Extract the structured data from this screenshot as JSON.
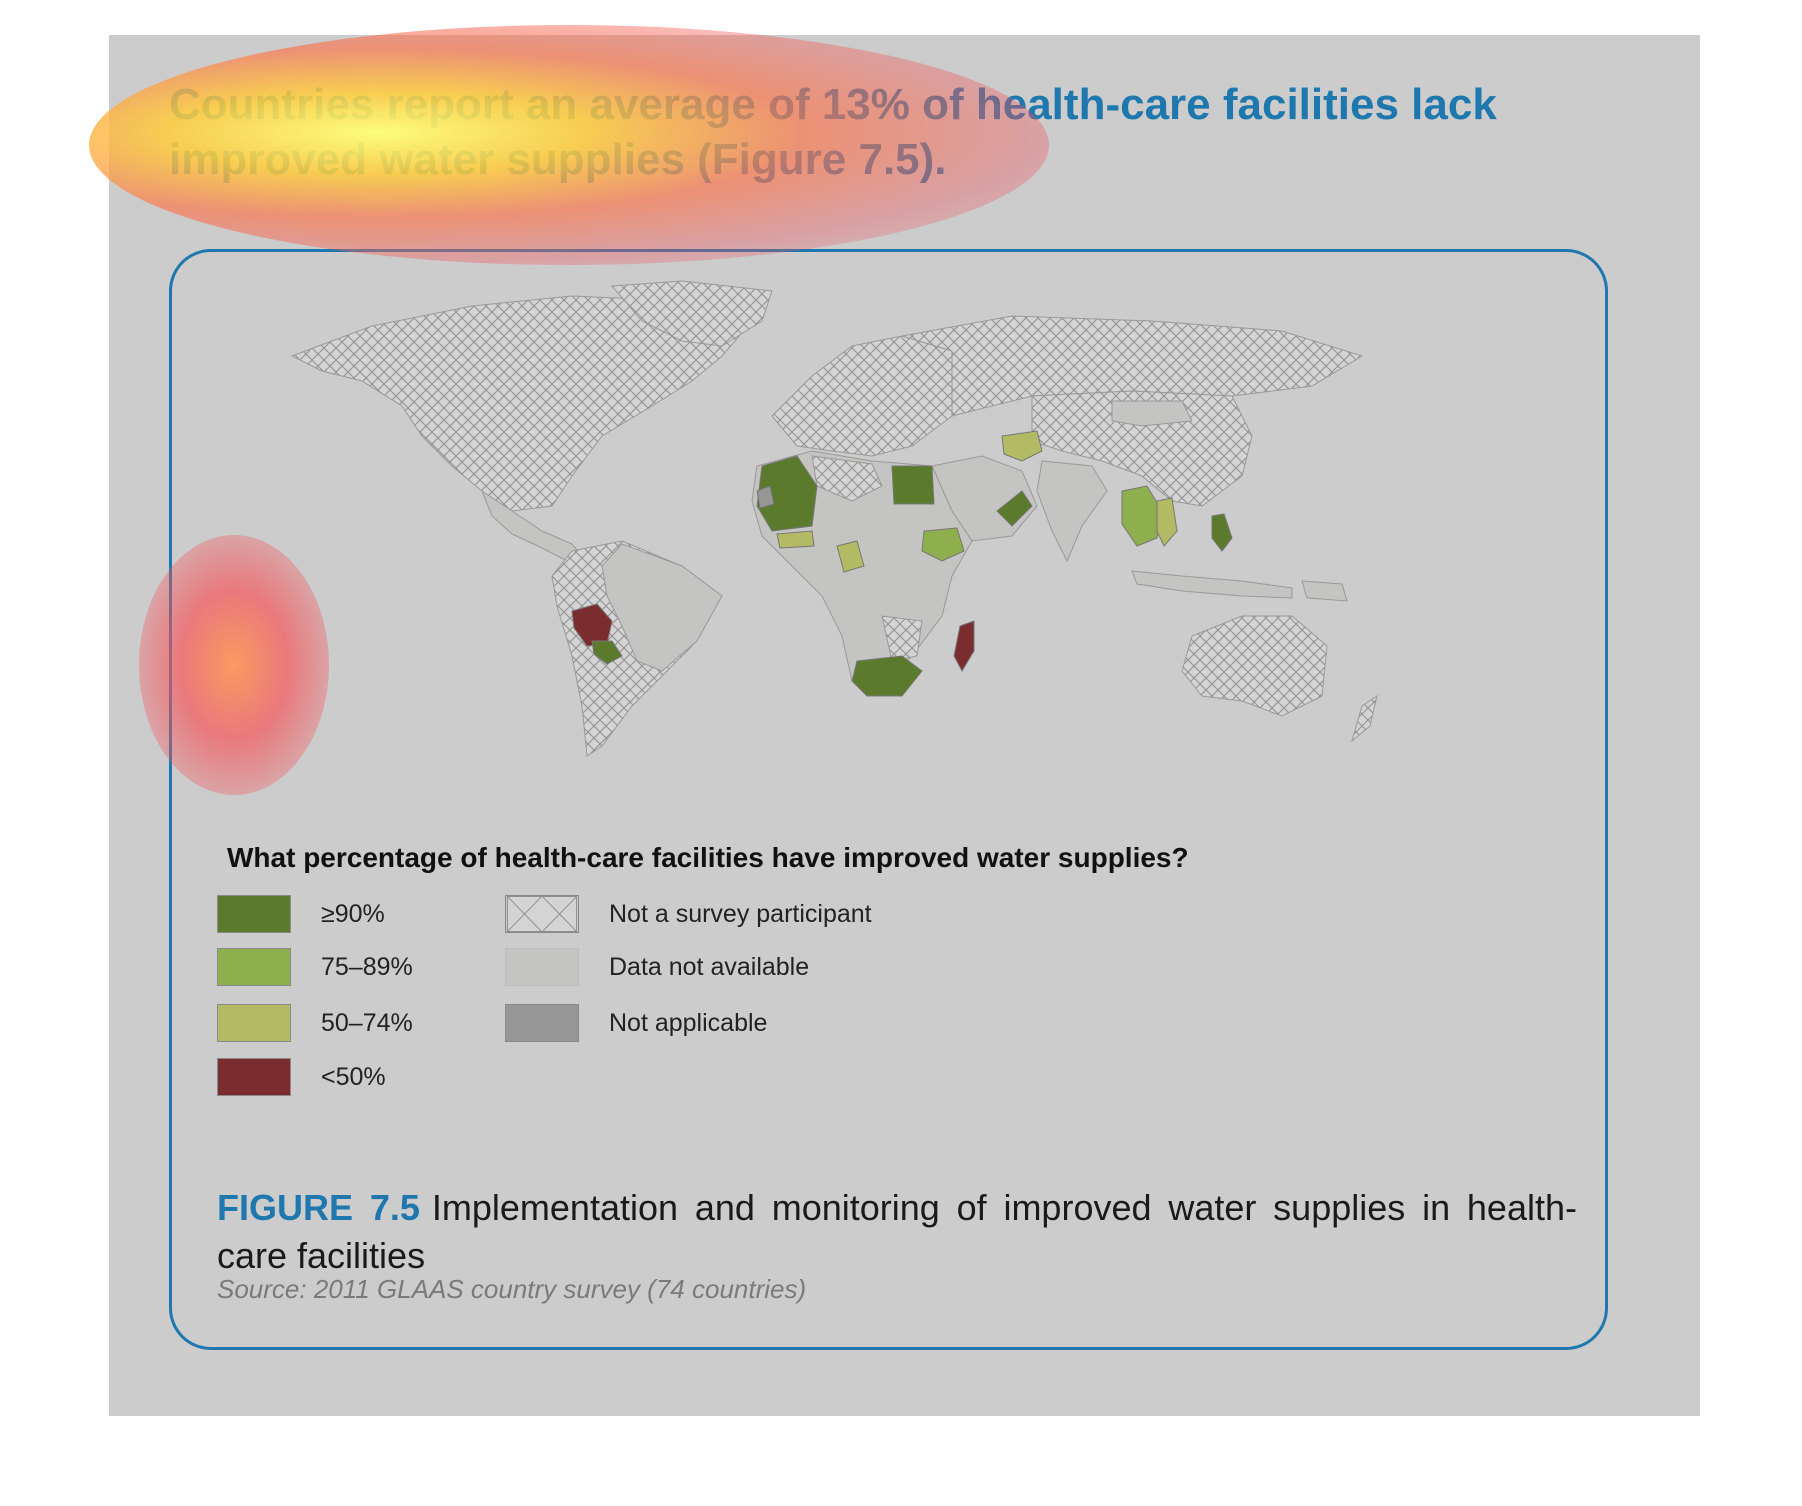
{
  "headline": "Countries report an average of 13% of health-care facilities lack improved water supplies (Figure 7.5).",
  "legend": {
    "title": "What percentage of health-care facilities have improved water supplies?",
    "items": [
      {
        "label": "≥90%",
        "color": "#5b7a2c"
      },
      {
        "label": "75–89%",
        "color": "#8fae4e"
      },
      {
        "label": "50–74%",
        "color": "#b2bb63"
      },
      {
        "label": "<50%",
        "color": "#7a2c2e"
      },
      {
        "label": "Not a survey participant",
        "pattern": "crosshatch"
      },
      {
        "label": "Data not available",
        "color": "#c4c4c2"
      },
      {
        "label": "Not applicable",
        "color": "#969696"
      }
    ]
  },
  "caption": {
    "figure_label": "FIGURE 7.5",
    "text": "Implementation and monitoring of improved water supplies in health-care facilities"
  },
  "source": "Source: 2011 GLAAS country survey (74 countries)",
  "colors": {
    "accent": "#1e77ad",
    "panel_bg": "#cccccc",
    "heatmap_overlay": "#f0d040"
  }
}
